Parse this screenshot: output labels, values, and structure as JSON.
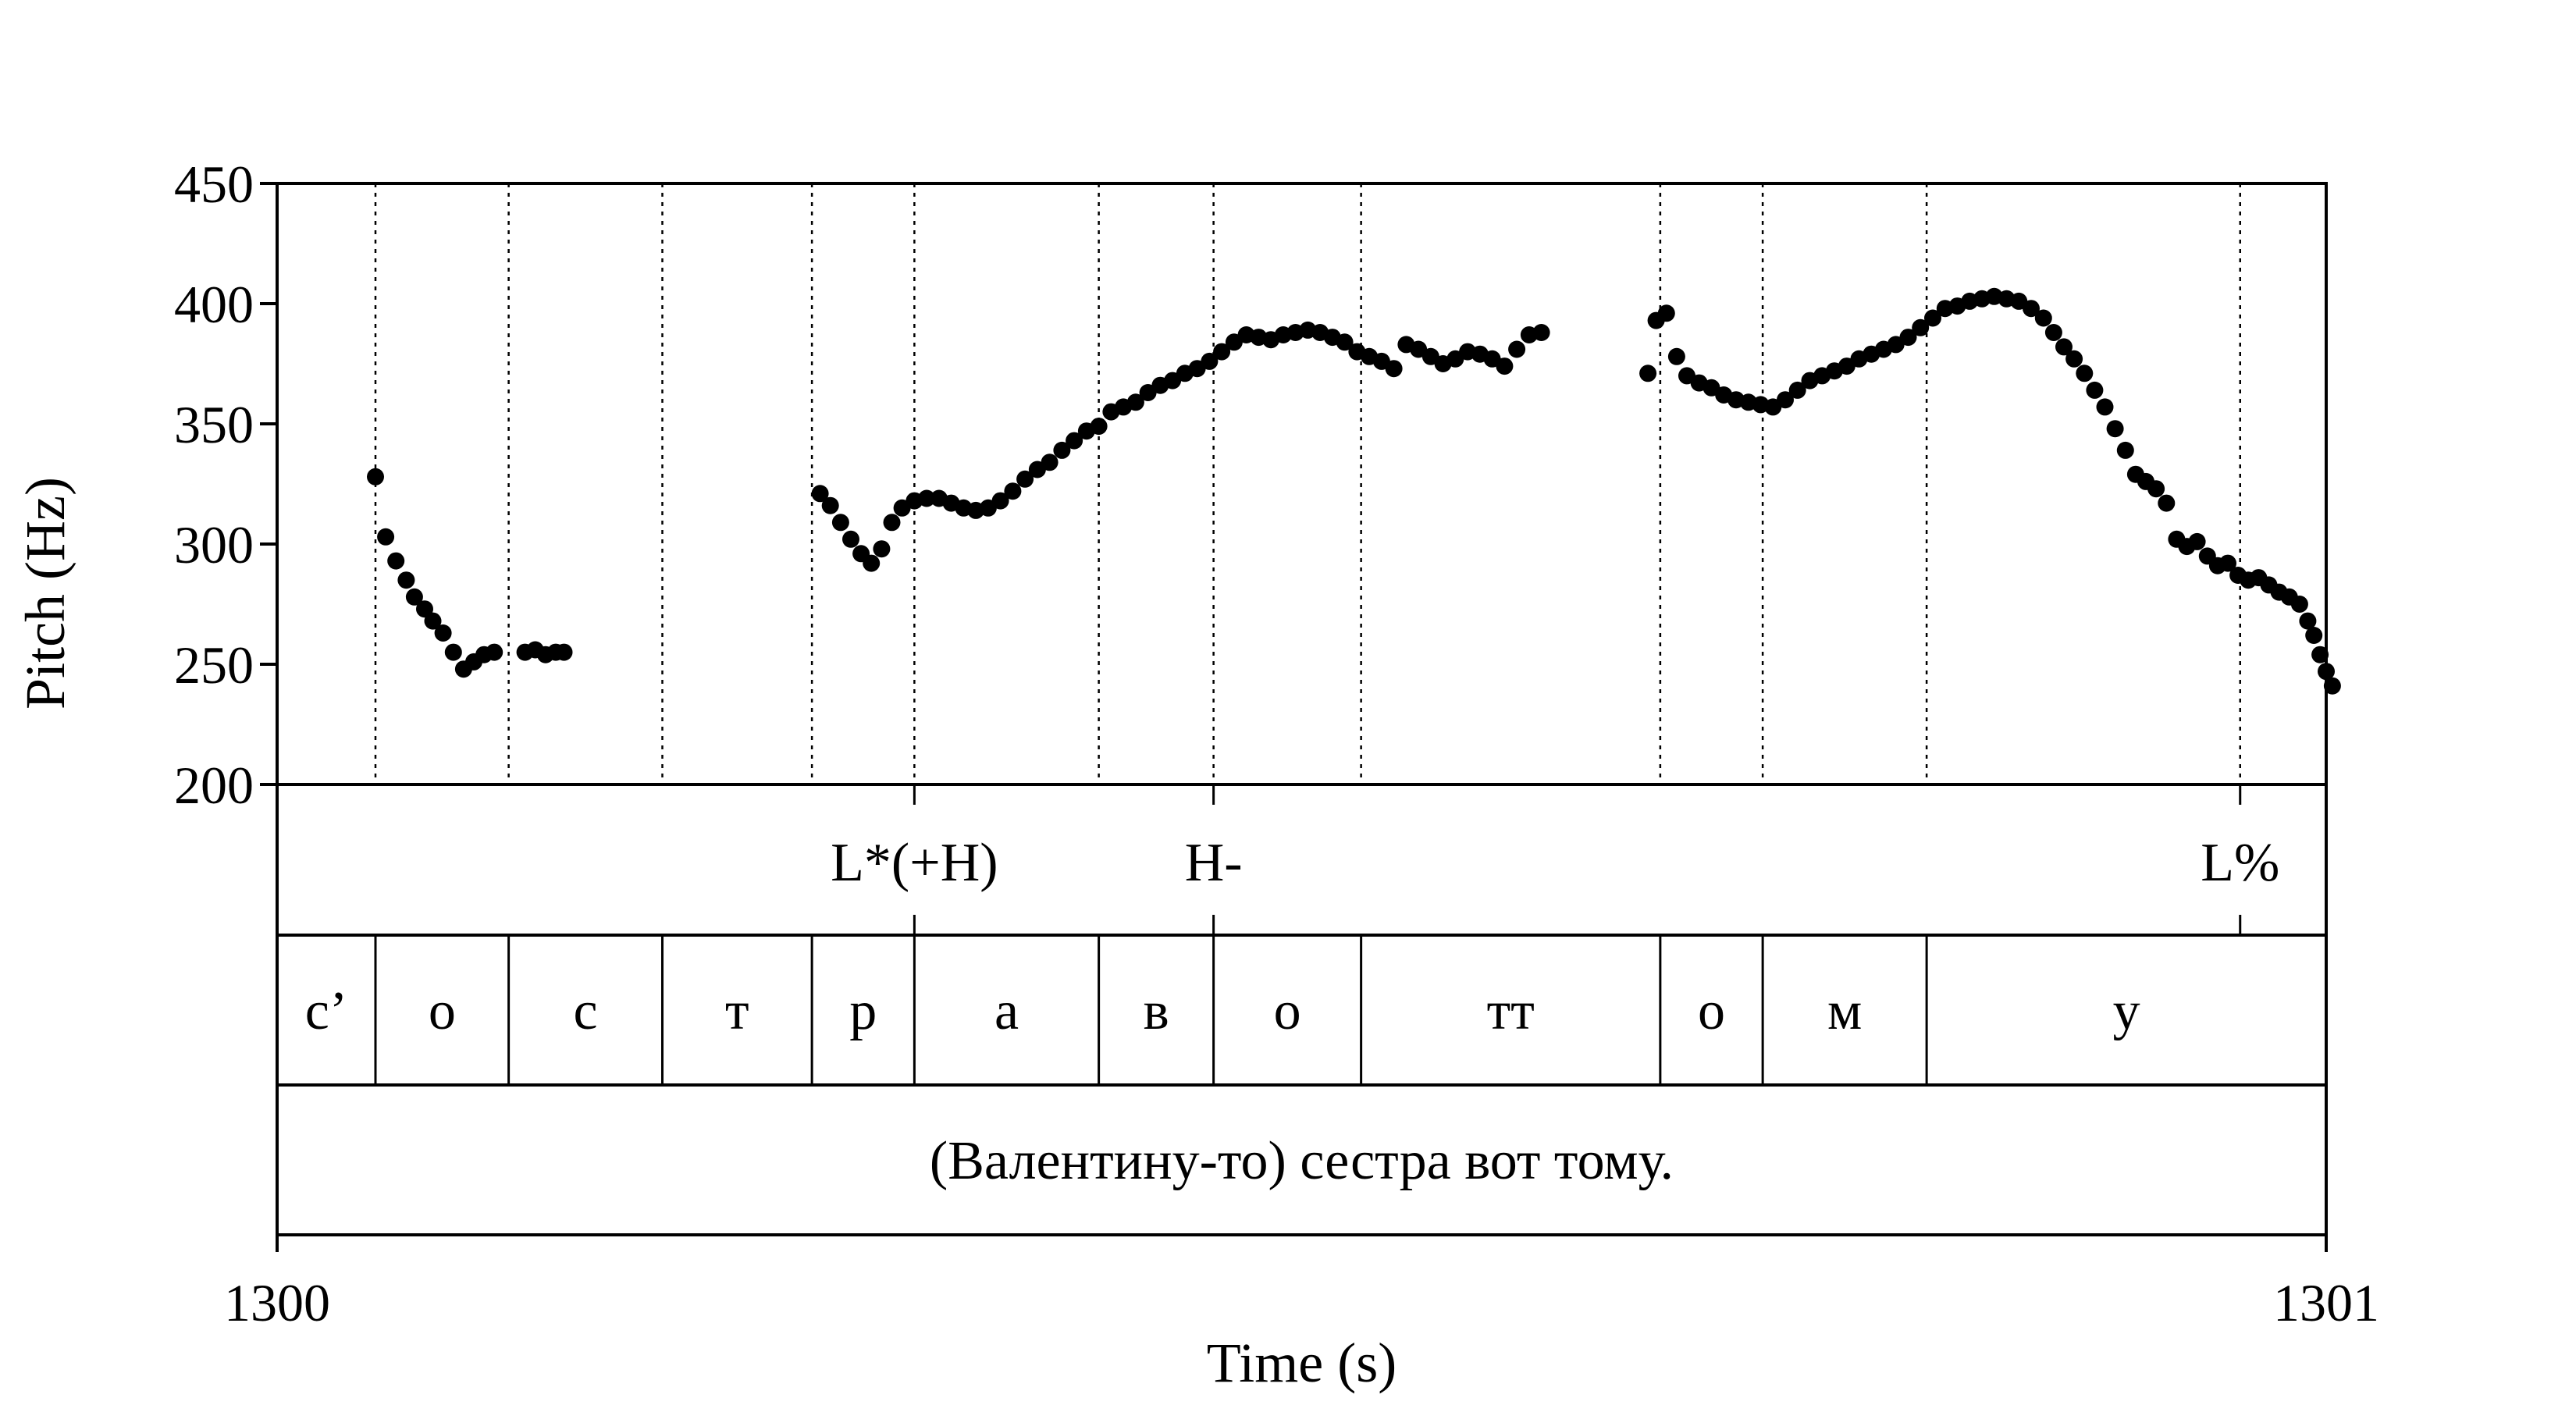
{
  "chart_data": {
    "type": "scatter",
    "xlabel": "Time (s)",
    "ylabel": "Pitch (Hz)",
    "xlim": [
      1300,
      1301
    ],
    "ylim": [
      200,
      450
    ],
    "x_ticks": [
      "1300",
      "1301"
    ],
    "y_ticks": [
      "200",
      "250",
      "300",
      "350",
      "400",
      "450"
    ],
    "y_tick_values": [
      200,
      250,
      300,
      350,
      400,
      450
    ],
    "grid": false,
    "legend": "none",
    "series": [
      {
        "points": [
          [
            1300.048,
            328
          ],
          [
            1300.053,
            303
          ],
          [
            1300.058,
            293
          ],
          [
            1300.063,
            285
          ],
          [
            1300.067,
            278
          ],
          [
            1300.072,
            273
          ],
          [
            1300.076,
            268
          ],
          [
            1300.081,
            263
          ],
          [
            1300.086,
            255
          ],
          [
            1300.091,
            248
          ],
          [
            1300.096,
            251
          ],
          [
            1300.101,
            254
          ],
          [
            1300.106,
            255
          ],
          [
            1300.121,
            255
          ],
          [
            1300.126,
            256
          ],
          [
            1300.131,
            254
          ],
          [
            1300.136,
            255
          ],
          [
            1300.14,
            255
          ],
          [
            1300.265,
            321
          ],
          [
            1300.27,
            316
          ],
          [
            1300.275,
            309
          ],
          [
            1300.28,
            302
          ],
          [
            1300.285,
            296
          ],
          [
            1300.29,
            292
          ],
          [
            1300.295,
            298
          ],
          [
            1300.3,
            309
          ],
          [
            1300.305,
            315
          ],
          [
            1300.311,
            318
          ],
          [
            1300.317,
            319
          ],
          [
            1300.323,
            319
          ],
          [
            1300.329,
            317
          ],
          [
            1300.335,
            315
          ],
          [
            1300.341,
            314
          ],
          [
            1300.347,
            315
          ],
          [
            1300.353,
            318
          ],
          [
            1300.359,
            322
          ],
          [
            1300.365,
            327
          ],
          [
            1300.371,
            331
          ],
          [
            1300.377,
            334
          ],
          [
            1300.383,
            339
          ],
          [
            1300.389,
            343
          ],
          [
            1300.395,
            347
          ],
          [
            1300.401,
            349
          ],
          [
            1300.407,
            355
          ],
          [
            1300.413,
            357
          ],
          [
            1300.419,
            359
          ],
          [
            1300.425,
            363
          ],
          [
            1300.431,
            366
          ],
          [
            1300.437,
            368
          ],
          [
            1300.443,
            371
          ],
          [
            1300.449,
            373
          ],
          [
            1300.455,
            376
          ],
          [
            1300.461,
            380
          ],
          [
            1300.467,
            384
          ],
          [
            1300.473,
            387
          ],
          [
            1300.479,
            386
          ],
          [
            1300.485,
            385
          ],
          [
            1300.491,
            387
          ],
          [
            1300.497,
            388
          ],
          [
            1300.503,
            389
          ],
          [
            1300.509,
            388
          ],
          [
            1300.515,
            386
          ],
          [
            1300.521,
            384
          ],
          [
            1300.527,
            380
          ],
          [
            1300.533,
            378
          ],
          [
            1300.539,
            376
          ],
          [
            1300.545,
            373
          ],
          [
            1300.551,
            383
          ],
          [
            1300.557,
            381
          ],
          [
            1300.563,
            378
          ],
          [
            1300.569,
            375
          ],
          [
            1300.575,
            377
          ],
          [
            1300.581,
            380
          ],
          [
            1300.587,
            379
          ],
          [
            1300.593,
            377
          ],
          [
            1300.599,
            374
          ],
          [
            1300.605,
            381
          ],
          [
            1300.611,
            387
          ],
          [
            1300.617,
            388
          ],
          [
            1300.669,
            371
          ],
          [
            1300.673,
            393
          ],
          [
            1300.678,
            396
          ],
          [
            1300.683,
            378
          ],
          [
            1300.688,
            370
          ],
          [
            1300.694,
            367
          ],
          [
            1300.7,
            365
          ],
          [
            1300.706,
            362
          ],
          [
            1300.712,
            360
          ],
          [
            1300.718,
            359
          ],
          [
            1300.724,
            358
          ],
          [
            1300.73,
            357
          ],
          [
            1300.736,
            360
          ],
          [
            1300.742,
            364
          ],
          [
            1300.748,
            368
          ],
          [
            1300.754,
            370
          ],
          [
            1300.76,
            372
          ],
          [
            1300.766,
            374
          ],
          [
            1300.772,
            377
          ],
          [
            1300.778,
            379
          ],
          [
            1300.784,
            381
          ],
          [
            1300.79,
            383
          ],
          [
            1300.796,
            386
          ],
          [
            1300.802,
            390
          ],
          [
            1300.808,
            394
          ],
          [
            1300.814,
            398
          ],
          [
            1300.82,
            399
          ],
          [
            1300.826,
            401
          ],
          [
            1300.832,
            402
          ],
          [
            1300.838,
            403
          ],
          [
            1300.844,
            402
          ],
          [
            1300.85,
            401
          ],
          [
            1300.856,
            398
          ],
          [
            1300.862,
            394
          ],
          [
            1300.867,
            388
          ],
          [
            1300.872,
            382
          ],
          [
            1300.877,
            377
          ],
          [
            1300.882,
            371
          ],
          [
            1300.887,
            364
          ],
          [
            1300.892,
            357
          ],
          [
            1300.897,
            348
          ],
          [
            1300.902,
            339
          ],
          [
            1300.907,
            329
          ],
          [
            1300.912,
            326
          ],
          [
            1300.917,
            323
          ],
          [
            1300.922,
            317
          ],
          [
            1300.927,
            302
          ],
          [
            1300.932,
            299
          ],
          [
            1300.937,
            301
          ],
          [
            1300.942,
            295
          ],
          [
            1300.947,
            291
          ],
          [
            1300.952,
            292
          ],
          [
            1300.957,
            287
          ],
          [
            1300.962,
            285
          ],
          [
            1300.967,
            286
          ],
          [
            1300.972,
            283
          ],
          [
            1300.977,
            280
          ],
          [
            1300.982,
            278
          ],
          [
            1300.987,
            275
          ],
          [
            1300.991,
            268
          ],
          [
            1300.994,
            262
          ],
          [
            1300.997,
            254
          ],
          [
            1301.0,
            247
          ],
          [
            1301.003,
            241
          ]
        ]
      }
    ],
    "boundaries": [
      1300.048,
      1300.113,
      1300.188,
      1300.261,
      1300.311,
      1300.401,
      1300.457,
      1300.529,
      1300.675,
      1300.725,
      1300.805,
      1300.958
    ],
    "tiers": {
      "tones": [
        {
          "label": "L*(+H)",
          "x": 1300.311
        },
        {
          "label": "H-",
          "x": 1300.457
        },
        {
          "label": "L%",
          "x": 1300.958
        }
      ],
      "segments": [
        {
          "label": "с’",
          "start": 1300.0,
          "end": 1300.048
        },
        {
          "label": "о",
          "start": 1300.048,
          "end": 1300.113
        },
        {
          "label": "с",
          "start": 1300.113,
          "end": 1300.188
        },
        {
          "label": "т",
          "start": 1300.188,
          "end": 1300.261
        },
        {
          "label": "р",
          "start": 1300.261,
          "end": 1300.311
        },
        {
          "label": "а",
          "start": 1300.311,
          "end": 1300.401
        },
        {
          "label": "в",
          "start": 1300.401,
          "end": 1300.457
        },
        {
          "label": "о",
          "start": 1300.457,
          "end": 1300.529
        },
        {
          "label": "тт",
          "start": 1300.529,
          "end": 1300.675
        },
        {
          "label": "о",
          "start": 1300.675,
          "end": 1300.725
        },
        {
          "label": "м",
          "start": 1300.725,
          "end": 1300.805
        },
        {
          "label": "у",
          "start": 1300.805,
          "end": 1301.0
        }
      ],
      "sentence": "(Валентину-то) сестра вот тому."
    }
  }
}
